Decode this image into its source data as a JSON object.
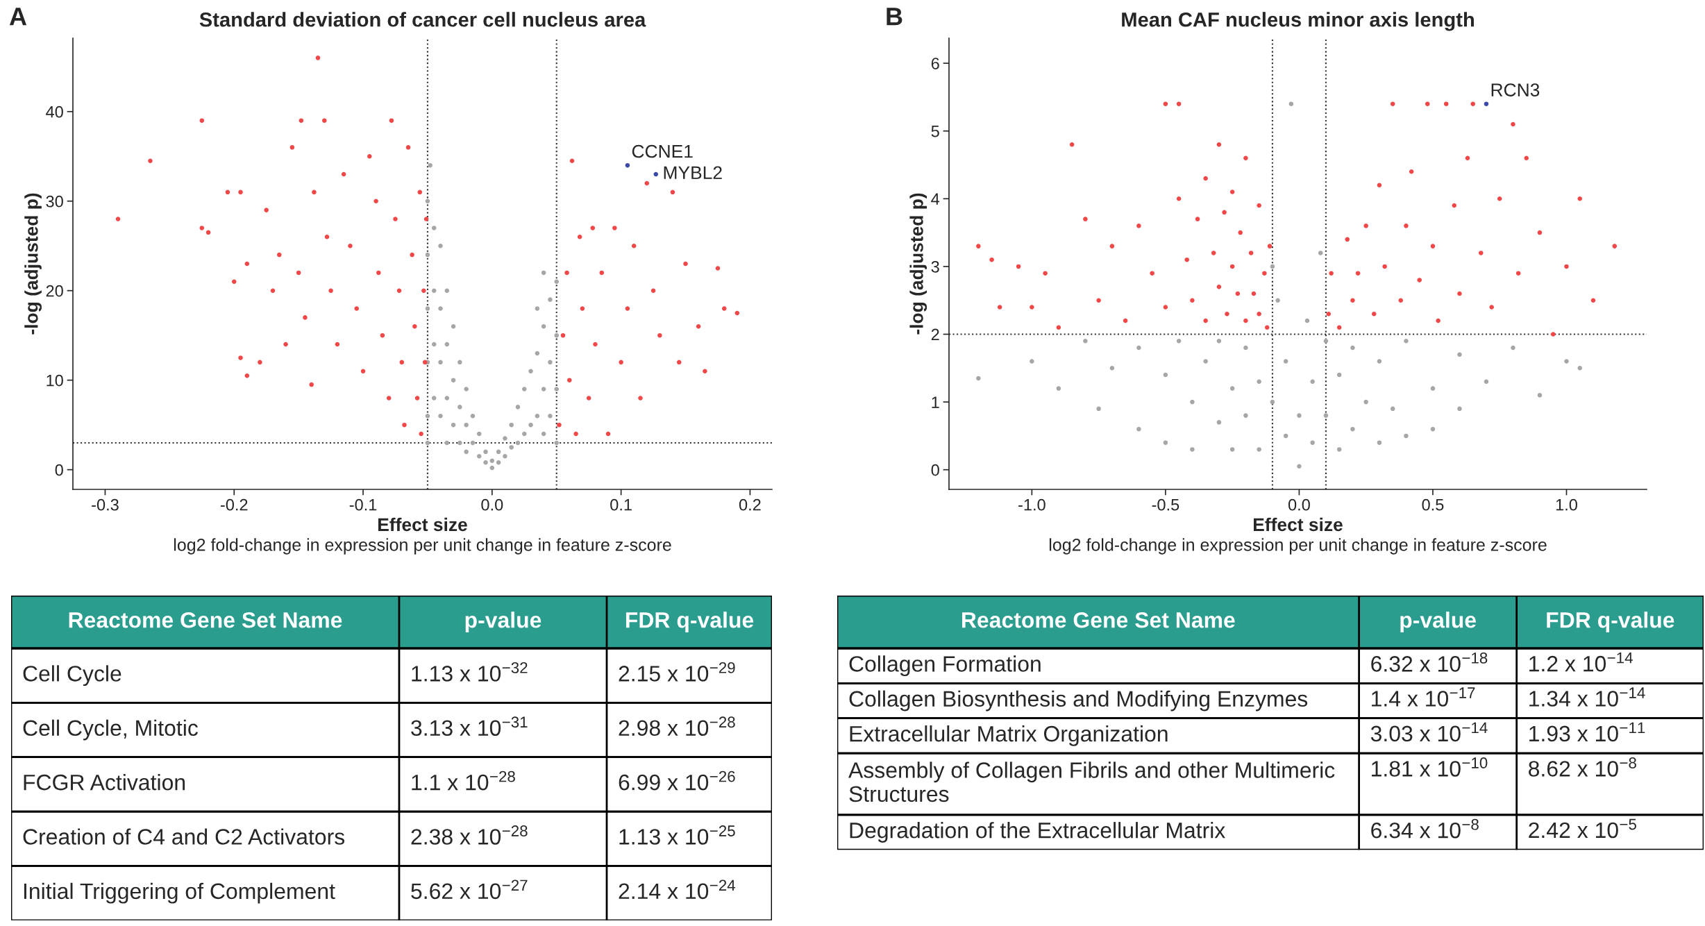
{
  "chart_data": [
    {
      "type": "scatter",
      "title": "Standard deviation of cancer cell nucleus area",
      "xlabel": "Effect size",
      "ylabel": "-log (adjusted p)",
      "marker": "circle",
      "xlim": [
        -0.325,
        0.217
      ],
      "xticks": [
        -0.3,
        -0.2,
        -0.1,
        {
          "value": 0,
          "label": "0.0"
        },
        0.1,
        0.2
      ],
      "ylim": [
        -2.2,
        48.2
      ],
      "yticks": [
        0,
        10,
        20,
        30,
        40
      ],
      "ref_lines": [
        {
          "axis": "x",
          "value": -0.05,
          "line_style": "dotted",
          "color": "#333333"
        },
        {
          "axis": "x",
          "value": 0.05,
          "line_style": "dotted",
          "color": "#333333"
        },
        {
          "axis": "y",
          "value": 3,
          "line_style": "dotted",
          "color": "#333333"
        }
      ],
      "annotations": [
        "A",
        "log2 fold-change in expression per unit change in feature z-score",
        {
          "text": "CCNE1",
          "x": 0.105,
          "y": 34
        },
        {
          "text": "MYBL2",
          "x": 0.127,
          "y": 33
        }
      ],
      "series": [
        {
          "color": "#a6a6a6",
          "x": [
            -0.05,
            -0.05,
            -0.05,
            -0.05,
            -0.05,
            -0.05,
            -0.048,
            -0.045,
            -0.045,
            -0.045,
            -0.045,
            -0.04,
            -0.04,
            -0.04,
            -0.04,
            -0.035,
            -0.035,
            -0.035,
            -0.035,
            -0.03,
            -0.03,
            -0.03,
            -0.025,
            -0.025,
            -0.025,
            -0.02,
            -0.02,
            -0.02,
            -0.015,
            -0.015,
            -0.01,
            -0.01,
            -0.005,
            -0.005,
            0,
            0,
            0.005,
            0.005,
            0.01,
            0.01,
            0.015,
            0.015,
            0.02,
            0.02,
            0.025,
            0.025,
            0.03,
            0.03,
            0.035,
            0.035,
            0.035,
            0.04,
            0.04,
            0.04,
            0.04,
            0.045,
            0.045,
            0.045,
            0.05,
            0.05,
            0.05,
            0.05
          ],
          "values": [
            30,
            24,
            18,
            12,
            6,
            3,
            34,
            27,
            20,
            14,
            8,
            25,
            18,
            12,
            6,
            20,
            14,
            8,
            3,
            16,
            10,
            5,
            12,
            7,
            3,
            9,
            5,
            2,
            6,
            3,
            4,
            1.5,
            2,
            0.8,
            0.2,
            1,
            0.8,
            2,
            1.5,
            3.5,
            2.5,
            5,
            3,
            7,
            4,
            9,
            5,
            11,
            6,
            13,
            18,
            4,
            9,
            16,
            22,
            6,
            12,
            19,
            3,
            9,
            15,
            21
          ]
        },
        {
          "color": "#f04848",
          "x": [
            -0.29,
            -0.265,
            -0.225,
            -0.225,
            -0.22,
            -0.205,
            -0.2,
            -0.195,
            -0.195,
            -0.19,
            -0.19,
            -0.18,
            -0.175,
            -0.17,
            -0.165,
            -0.16,
            -0.155,
            -0.15,
            -0.148,
            -0.145,
            -0.14,
            -0.138,
            -0.135,
            -0.13,
            -0.128,
            -0.125,
            -0.12,
            -0.115,
            -0.11,
            -0.105,
            -0.1,
            -0.095,
            -0.09,
            -0.088,
            -0.085,
            -0.08,
            -0.078,
            -0.075,
            -0.072,
            -0.07,
            -0.068,
            -0.065,
            -0.062,
            -0.06,
            -0.058,
            -0.056,
            -0.055,
            -0.053,
            -0.052,
            -0.051,
            0.052,
            0.055,
            0.058,
            0.06,
            0.062,
            0.065,
            0.068,
            0.07,
            0.075,
            0.078,
            0.08,
            0.085,
            0.09,
            0.095,
            0.1,
            0.105,
            0.11,
            0.115,
            0.12,
            0.125,
            0.13,
            0.14,
            0.145,
            0.15,
            0.16,
            0.165,
            0.175,
            0.18,
            0.19
          ],
          "values": [
            28,
            34.5,
            39,
            27,
            26.5,
            31,
            21,
            31,
            12.5,
            10.5,
            23,
            12,
            29,
            20,
            24,
            14,
            36,
            22,
            39,
            17,
            9.5,
            31,
            46,
            39,
            26,
            20,
            14,
            33,
            25,
            18,
            11,
            35,
            30,
            22,
            15,
            8,
            39,
            28,
            20,
            12,
            5,
            36,
            24,
            16,
            8,
            31,
            4,
            20,
            12,
            28,
            5,
            15,
            22,
            10,
            34.5,
            4,
            26,
            18,
            8,
            27,
            14,
            22,
            4,
            27,
            12,
            18,
            25,
            8,
            32,
            20,
            15,
            31,
            12,
            23,
            16,
            11,
            22.5,
            18,
            17.5
          ]
        },
        {
          "color": "#3a4aa6",
          "x": [
            0.105,
            0.127
          ],
          "values": [
            34,
            33
          ]
        }
      ]
    },
    {
      "type": "scatter",
      "title": "Mean CAF nucleus minor axis length",
      "xlabel": "Effect size",
      "ylabel": "-log (adjusted p)",
      "marker": "circle",
      "xlim": [
        -1.31,
        1.3
      ],
      "xticks": [
        {
          "value": -1,
          "label": "-1.0"
        },
        -0.5,
        {
          "value": 0,
          "label": "0.0"
        },
        0.5,
        {
          "value": 1,
          "label": "1.0"
        }
      ],
      "ylim": [
        -0.29,
        6.37
      ],
      "yticks": [
        0,
        1,
        2,
        3,
        4,
        5,
        6
      ],
      "ref_lines": [
        {
          "axis": "x",
          "value": -0.1,
          "line_style": "dotted",
          "color": "#333333"
        },
        {
          "axis": "x",
          "value": 0.1,
          "line_style": "dotted",
          "color": "#333333"
        },
        {
          "axis": "y",
          "value": 2,
          "line_style": "dotted",
          "color": "#333333"
        }
      ],
      "annotations": [
        "B",
        "log2 fold-change in expression per unit change in feature z-score",
        {
          "text": "RCN3",
          "x": 0.7,
          "y": 5.4
        }
      ],
      "series": [
        {
          "color": "#a6a6a6",
          "x": [
            -1.2,
            -1.0,
            -0.9,
            -0.8,
            -0.75,
            -0.7,
            -0.6,
            -0.6,
            -0.5,
            -0.5,
            -0.45,
            -0.4,
            -0.4,
            -0.35,
            -0.3,
            -0.3,
            -0.25,
            -0.25,
            -0.2,
            -0.2,
            -0.15,
            -0.15,
            -0.1,
            -0.1,
            -0.08,
            -0.05,
            -0.05,
            -0.03,
            0,
            0,
            0.03,
            0.05,
            0.05,
            0.08,
            0.1,
            0.1,
            0.15,
            0.15,
            0.2,
            0.2,
            0.25,
            0.3,
            0.3,
            0.35,
            0.4,
            0.4,
            0.5,
            0.5,
            0.6,
            0.6,
            0.7,
            0.8,
            0.9,
            1.0,
            1.05
          ],
          "values": [
            1.35,
            1.6,
            1.2,
            1.9,
            0.9,
            1.5,
            1.8,
            0.6,
            1.4,
            0.4,
            1.9,
            1.0,
            0.3,
            1.6,
            0.7,
            1.9,
            1.2,
            0.3,
            1.8,
            0.8,
            1.3,
            0.3,
            1.0,
            3.0,
            2.5,
            0.5,
            1.6,
            5.4,
            0.05,
            0.8,
            2.2,
            0.4,
            1.3,
            3.2,
            0.8,
            1.9,
            0.3,
            1.4,
            0.6,
            1.8,
            1.0,
            0.4,
            1.6,
            0.9,
            1.9,
            0.5,
            1.2,
            0.6,
            1.7,
            0.9,
            1.3,
            1.8,
            1.1,
            1.6,
            1.5
          ]
        },
        {
          "color": "#f04848",
          "x": [
            -1.2,
            -1.15,
            -1.12,
            -1.05,
            -1.0,
            -0.95,
            -0.9,
            -0.85,
            -0.8,
            -0.75,
            -0.7,
            -0.65,
            -0.6,
            -0.55,
            -0.5,
            -0.5,
            -0.45,
            -0.45,
            -0.42,
            -0.4,
            -0.38,
            -0.35,
            -0.35,
            -0.32,
            -0.3,
            -0.3,
            -0.28,
            -0.27,
            -0.25,
            -0.25,
            -0.23,
            -0.22,
            -0.2,
            -0.2,
            -0.18,
            -0.17,
            -0.15,
            -0.15,
            -0.13,
            -0.12,
            -0.11,
            0.11,
            0.12,
            0.15,
            0.18,
            0.2,
            0.22,
            0.25,
            0.28,
            0.3,
            0.32,
            0.35,
            0.38,
            0.4,
            0.42,
            0.45,
            0.48,
            0.5,
            0.52,
            0.55,
            0.58,
            0.6,
            0.63,
            0.65,
            0.68,
            0.72,
            0.75,
            0.8,
            0.82,
            0.85,
            0.9,
            0.95,
            1.0,
            1.05,
            1.1,
            1.18
          ],
          "values": [
            3.3,
            3.1,
            2.4,
            3.0,
            2.4,
            2.9,
            2.1,
            4.8,
            3.7,
            2.5,
            3.3,
            2.2,
            3.6,
            2.9,
            5.4,
            2.4,
            5.4,
            4.0,
            3.1,
            2.5,
            3.7,
            4.3,
            2.2,
            3.2,
            4.8,
            2.7,
            3.8,
            2.3,
            4.1,
            3.0,
            2.6,
            3.5,
            4.6,
            2.2,
            3.2,
            2.6,
            3.9,
            2.3,
            2.9,
            2.1,
            3.3,
            2.3,
            2.9,
            2.1,
            3.4,
            2.5,
            2.9,
            3.6,
            2.3,
            4.2,
            3.0,
            5.4,
            2.5,
            3.6,
            4.4,
            2.8,
            5.4,
            3.3,
            2.2,
            5.4,
            3.9,
            2.6,
            4.6,
            5.4,
            3.2,
            2.4,
            4.0,
            5.1,
            2.9,
            4.6,
            3.5,
            2.0,
            3.0,
            4.0,
            2.5,
            3.3
          ]
        },
        {
          "color": "#3a4aa6",
          "x": [
            0.7
          ],
          "values": [
            5.4
          ]
        }
      ]
    },
    {
      "type": "other",
      "color": "#2a9d8f",
      "categories": [
        "Reactome Gene Set Name",
        "p-value",
        "FDR q-value"
      ],
      "y_categories": [
        "Cell Cycle",
        "Cell Cycle, Mitotic",
        "FCGR Activation",
        "Creation of C4 and C2 Activators",
        "Initial Triggering of Complement"
      ],
      "cell_labels": [
        [
          "1.13 x 10$^{−32}$",
          "2.15 x 10$^{−29}$"
        ],
        [
          "3.13 x 10$^{−31}$",
          "2.98 x 10$^{−28}$"
        ],
        [
          "1.1 x 10$^{−28}$",
          "6.99 x 10$^{−26}$"
        ],
        [
          "2.38 x 10$^{−28}$",
          "1.13 x 10$^{−25}$"
        ],
        [
          "5.62 x 10$^{−27}$",
          "2.14 x 10$^{−24}$"
        ]
      ]
    },
    {
      "type": "other",
      "color": "#2a9d8f",
      "categories": [
        "Reactome Gene Set Name",
        "p-value",
        "FDR q-value"
      ],
      "y_categories": [
        "Collagen Formation",
        "Collagen Biosynthesis and Modifying Enzymes",
        "Extracellular Matrix Organization",
        "Assembly of Collagen Fibrils and other Multimeric Structures",
        "Degradation of the Extracellular Matrix"
      ],
      "cell_labels": [
        [
          "6.32 x 10$^{−18}$",
          "1.2 x 10$^{−14}$"
        ],
        [
          "1.4 x 10$^{−17}$",
          "1.34 x 10$^{−14}$"
        ],
        [
          "3.03 x 10$^{−14}$",
          "1.93 x 10$^{−11}$"
        ],
        [
          "1.81 x 10$^{−10}$",
          "8.62 x 10$^{−8}$"
        ],
        [
          "6.34 x 10$^{−8}$",
          "2.42 x 10$^{−5}$"
        ]
      ]
    }
  ]
}
